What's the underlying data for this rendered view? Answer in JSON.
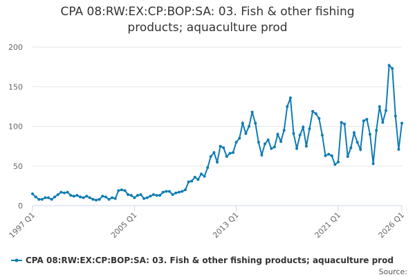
{
  "chart_data": {
    "type": "line",
    "title": "CPA 08:RW:EX:CP:BOP:SA: 03. Fish & other fishing products; aquaculture prod",
    "source": "Source:",
    "categories": [
      "1997 Q1",
      null,
      null,
      null,
      null,
      null,
      null,
      null,
      null,
      null,
      null,
      null,
      null,
      null,
      null,
      null,
      null,
      null,
      null,
      null,
      null,
      null,
      null,
      null,
      null,
      null,
      null,
      null,
      null,
      null,
      null,
      null,
      "2005 Q1",
      null,
      null,
      null,
      null,
      null,
      null,
      null,
      null,
      null,
      null,
      null,
      null,
      null,
      null,
      null,
      null,
      null,
      null,
      null,
      null,
      null,
      null,
      null,
      null,
      null,
      null,
      null,
      null,
      null,
      null,
      null,
      "2013 Q1",
      null,
      null,
      null,
      null,
      null,
      null,
      null,
      null,
      null,
      null,
      null,
      null,
      null,
      null,
      null,
      null,
      null,
      null,
      null,
      null,
      null,
      null,
      null,
      null,
      null,
      null,
      null,
      null,
      null,
      null,
      null,
      "2021 Q1",
      null,
      null,
      null,
      null,
      null,
      null,
      null,
      null,
      null,
      null,
      null,
      null,
      null,
      null,
      null,
      null,
      null,
      null,
      null,
      "2026 Q1"
    ],
    "series": [
      {
        "name": "CPA 08:RW:EX:CP:BOP:SA: 03. Fish & other fishing products; aquaculture prod",
        "color": "#0e7bb5",
        "values": [
          15,
          11,
          8,
          8,
          10,
          10,
          8,
          11,
          14,
          17,
          16,
          17,
          13,
          12,
          13,
          11,
          10,
          12,
          10,
          8,
          7,
          8,
          12,
          11,
          8,
          10,
          9,
          19,
          20,
          19,
          14,
          13,
          10,
          13,
          14,
          9,
          10,
          12,
          14,
          13,
          13,
          17,
          18,
          18,
          14,
          16,
          17,
          18,
          20,
          30,
          31,
          36,
          33,
          40,
          37,
          48,
          62,
          67,
          55,
          75,
          73,
          62,
          66,
          67,
          80,
          85,
          104,
          91,
          100,
          118,
          104,
          80,
          64,
          78,
          83,
          72,
          74,
          90,
          81,
          95,
          125,
          136,
          91,
          72,
          89,
          99,
          75,
          97,
          119,
          116,
          110,
          89,
          63,
          65,
          63,
          52,
          55,
          105,
          103,
          62,
          73,
          92,
          80,
          71,
          107,
          109,
          90,
          53,
          95,
          125,
          105,
          120,
          177,
          173,
          113,
          71,
          104
        ]
      }
    ],
    "ylim": [
      0,
      200
    ],
    "yticks": [
      0,
      50,
      100,
      150,
      200
    ],
    "grid": true
  }
}
